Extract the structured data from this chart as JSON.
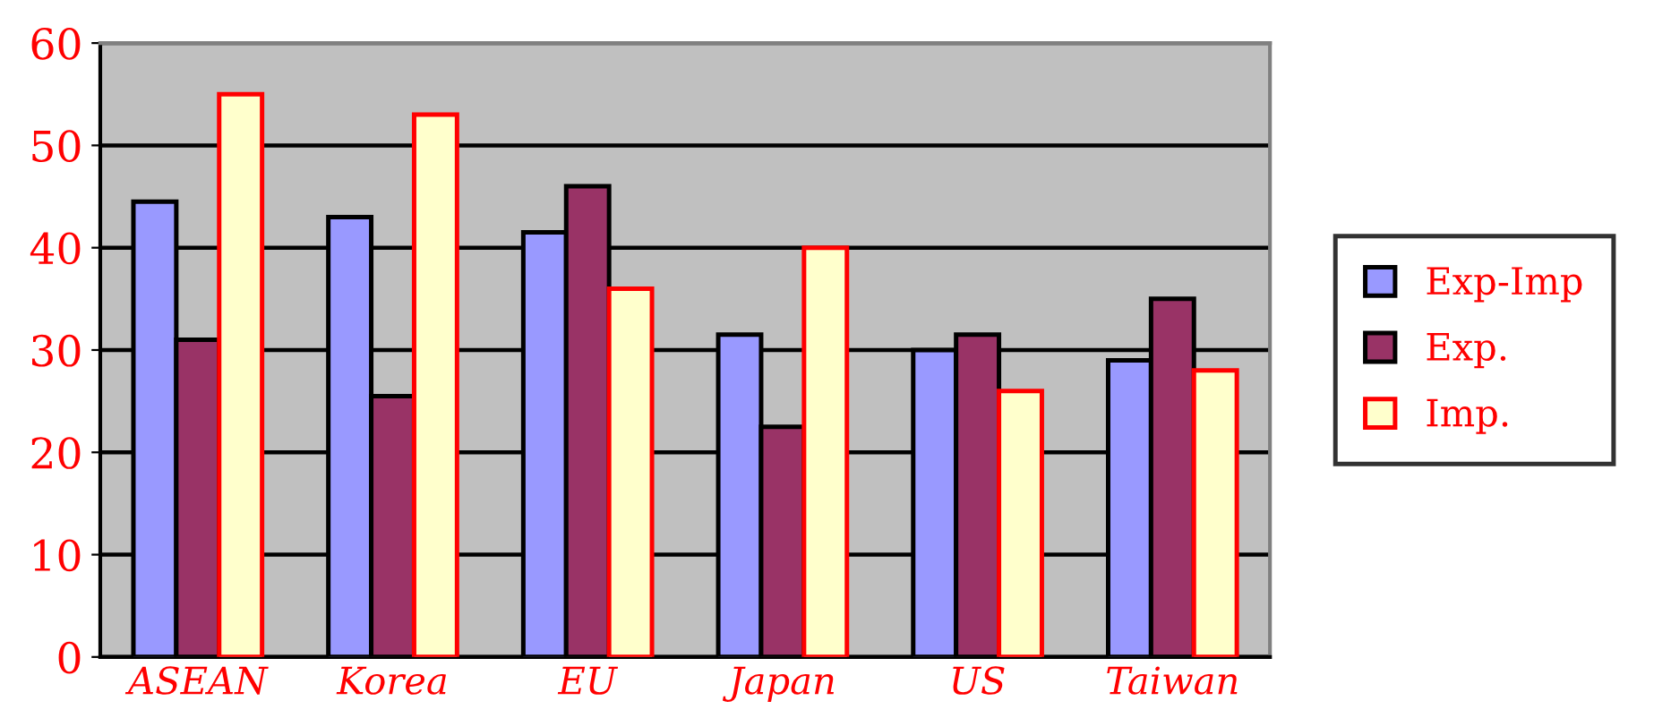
{
  "chart_data": {
    "type": "bar",
    "categories": [
      "ASEAN",
      "Korea",
      "EU",
      "Japan",
      "US",
      "Taiwan"
    ],
    "series": [
      {
        "name": "Exp-Imp",
        "color": "#9999ff",
        "values": [
          44.5,
          43,
          41.5,
          31.5,
          30,
          29
        ]
      },
      {
        "name": "Exp.",
        "color": "#993366",
        "values": [
          31,
          25.5,
          46,
          22.5,
          31.5,
          35
        ]
      },
      {
        "name": "Imp.",
        "color": "#ffffcc",
        "values": [
          55,
          53,
          36,
          40,
          26,
          28
        ]
      }
    ],
    "ylim": [
      0,
      60
    ],
    "yticks": [
      0,
      10,
      20,
      30,
      40,
      50,
      60
    ],
    "grid": "y",
    "legend": "right"
  }
}
